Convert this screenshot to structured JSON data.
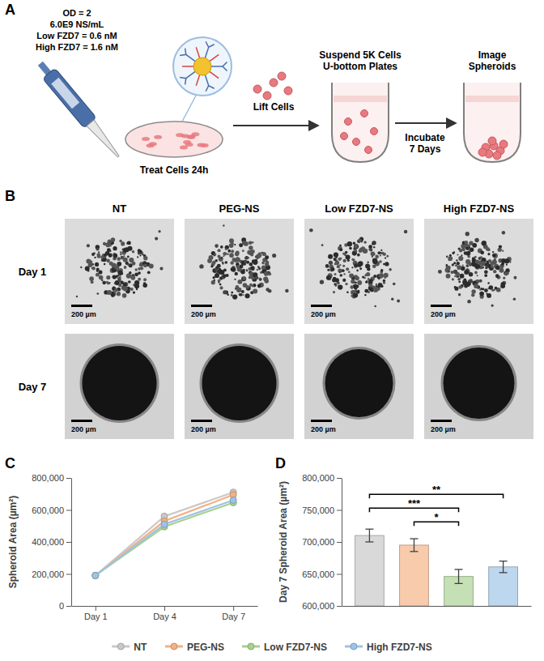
{
  "panel_a": {
    "letter": "A",
    "conditions": [
      "OD = 2",
      "6.0E9 NS/mL",
      "Low FZD7 = 0.6 nM",
      "High FZD7 = 1.6 nM"
    ],
    "steps": {
      "treat": [
        "Treat Cells 24h"
      ],
      "lift": [
        "Lift Cells"
      ],
      "suspend": [
        "Suspend 5K Cells",
        "U-bottom Plates"
      ],
      "incubate": [
        "Incubate",
        "7 Days"
      ],
      "image": [
        "Image",
        "Spheroids"
      ]
    }
  },
  "panel_b": {
    "letter": "B",
    "columns": [
      "NT",
      "PEG-NS",
      "Low FZD7-NS",
      "High FZD7-NS"
    ],
    "rows": [
      "Day 1",
      "Day 7"
    ],
    "scale_bar": "200 µm"
  },
  "chart_data": [
    {
      "letter": "C",
      "type": "line",
      "categories": [
        "Day 1",
        "Day 4",
        "Day 7"
      ],
      "y_label": "Spheroid Area (µm²)",
      "ylim": [
        0,
        800000
      ],
      "yticks": [
        0,
        {
          "value": 200000,
          "label": "200,000"
        },
        {
          "value": 400000,
          "label": "400,000"
        },
        {
          "value": 600000,
          "label": "600,000"
        },
        {
          "value": 800000,
          "label": "800,000"
        }
      ],
      "marker": "circle",
      "legend": "bottom",
      "series": [
        {
          "name": "NT",
          "color": "#c9c9c9",
          "values": [
            190000,
            560000,
            710000
          ]
        },
        {
          "name": "PEG-NS",
          "color": "#f4b183",
          "values": [
            190000,
            530000,
            695000
          ]
        },
        {
          "name": "Low FZD7-NS",
          "color": "#a9d18e",
          "values": [
            190000,
            495000,
            646000
          ]
        },
        {
          "name": "High FZD7-NS",
          "color": "#9dc3e6",
          "values": [
            190000,
            510000,
            661000
          ]
        }
      ]
    },
    {
      "letter": "D",
      "type": "bar",
      "categories": [
        "NT",
        "PEG-NS",
        "Low FZD7-NS",
        "High FZD7-NS"
      ],
      "values": [
        710000,
        695000,
        646000,
        661000
      ],
      "errors": [
        10000,
        10000,
        11000,
        9000
      ],
      "colors": [
        "#d9d9d9",
        "#f8cbad",
        "#c5e0b4",
        "#bdd7ee"
      ],
      "y_label": "Day 7 Spheroid Area (µm²)",
      "ylim": [
        600000,
        800000
      ],
      "yticks": [
        {
          "value": 600000,
          "label": "600,000"
        },
        {
          "value": 650000,
          "label": "650,000"
        },
        {
          "value": 700000,
          "label": "700,000"
        },
        {
          "value": 750000,
          "label": "750,000"
        },
        {
          "value": 800000,
          "label": "800,000"
        }
      ],
      "tick_labels": "y",
      "significance": [
        {
          "from": "PEG-NS",
          "to": "Low FZD7-NS",
          "label": "*"
        },
        {
          "from": "NT",
          "to": "Low FZD7-NS",
          "label": "***"
        },
        {
          "from": "NT",
          "to": "High FZD7-NS",
          "label": "**"
        }
      ]
    }
  ]
}
